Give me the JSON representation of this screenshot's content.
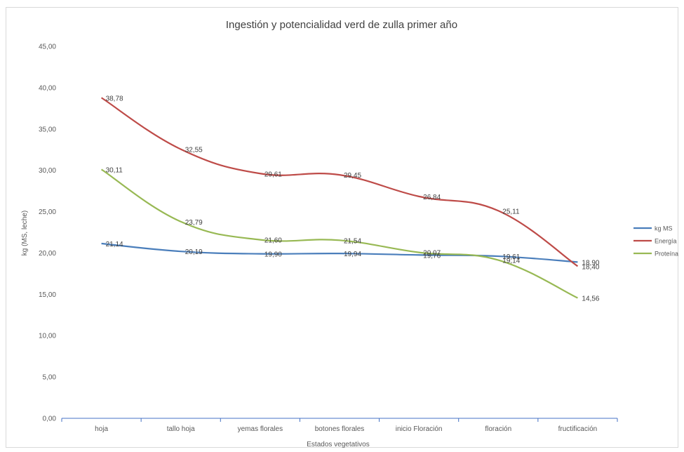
{
  "chart_data": {
    "type": "line",
    "title": "Ingestión y potencialidad verd de zulla primer año",
    "xlabel": "Estados vegetativos",
    "ylabel": "kg (MS, leche)",
    "ylim": [
      0,
      45
    ],
    "yticks": [
      "0,00",
      "5,00",
      "10,00",
      "15,00",
      "20,00",
      "25,00",
      "30,00",
      "35,00",
      "40,00",
      "45,00"
    ],
    "categories": [
      "hoja",
      "tallo hoja",
      "yemas florales",
      "botones florales",
      "inicio Floración",
      "floración",
      "fructificación"
    ],
    "series": [
      {
        "name": "kg MS",
        "color": "#4a7ebb",
        "values": [
          21.14,
          20.19,
          19.9,
          19.94,
          19.76,
          19.61,
          18.9
        ],
        "labels": [
          "21,14",
          "20,19",
          "19,90",
          "19,94",
          "19,76",
          "19,61",
          "18,90"
        ]
      },
      {
        "name": "Energía",
        "color": "#be4b48",
        "values": [
          38.78,
          32.55,
          29.61,
          29.45,
          26.84,
          25.11,
          18.4
        ],
        "labels": [
          "38,78",
          "32,55",
          "29,61",
          "29,45",
          "26,84",
          "25,11",
          "18,40"
        ]
      },
      {
        "name": "Proteína",
        "color": "#98b954",
        "values": [
          30.11,
          23.79,
          21.6,
          21.54,
          20.07,
          19.14,
          14.56
        ],
        "labels": [
          "30,11",
          "23,79",
          "21,60",
          "21,54",
          "20,07",
          "19,14",
          "14,56"
        ]
      }
    ],
    "grid": false,
    "legend": "right"
  }
}
